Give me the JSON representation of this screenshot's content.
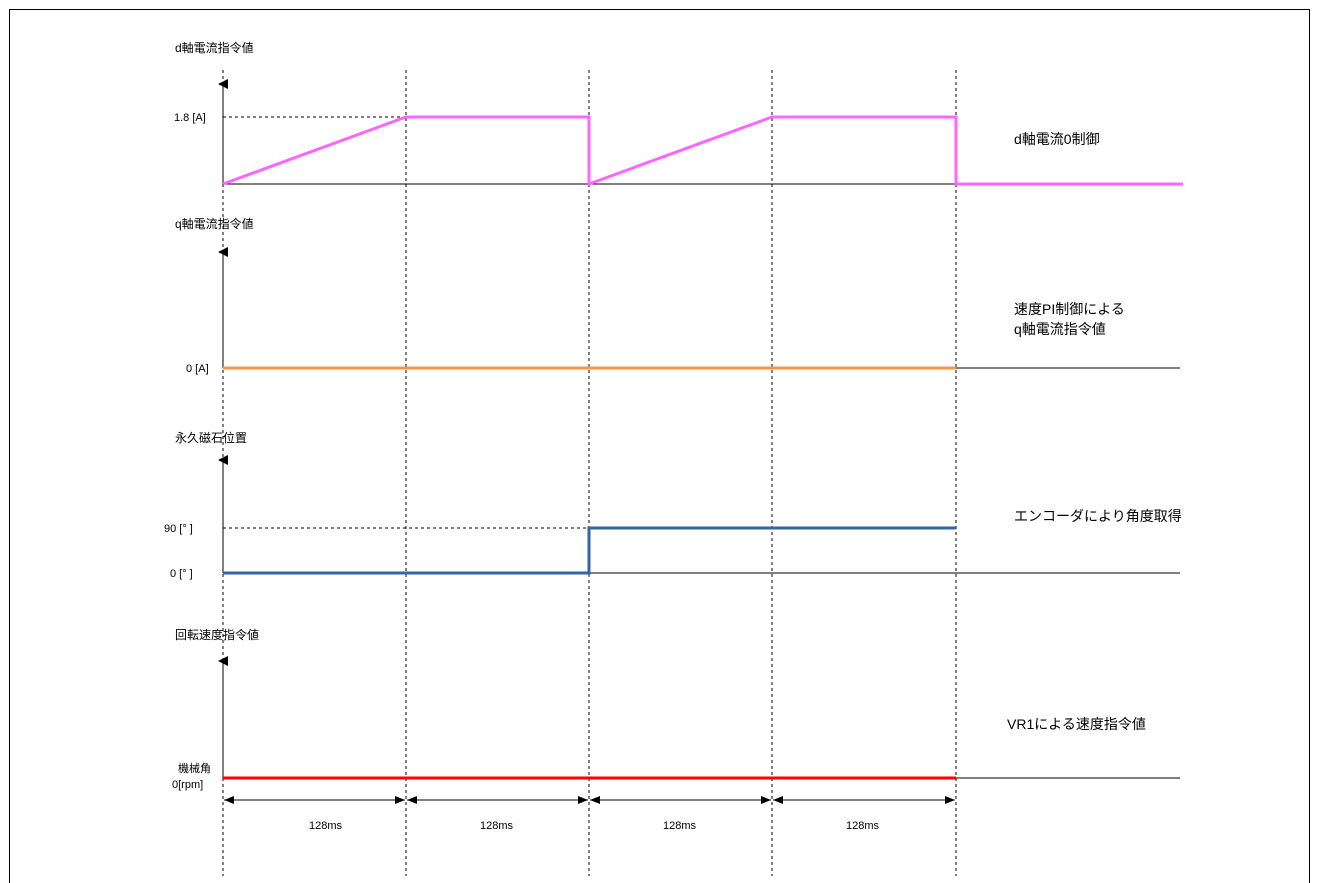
{
  "colors": {
    "d_axis_current": "#ff66ff",
    "q_axis_current": "#f79646",
    "magnet_position": "#3465a4",
    "speed_command": "#ff0000",
    "axis": "#000000",
    "guide": "#000000"
  },
  "panels": [
    {
      "title": "d軸電流指令値",
      "value_label": "1.8 [A]",
      "note": "d軸電流0制御",
      "value": 1.8,
      "unit": "A"
    },
    {
      "title": "q軸電流指令値",
      "value_label": "0 [A]",
      "note_lines": [
        "速度PI制御による",
        "q軸電流指令値"
      ],
      "value": 0,
      "unit": "A"
    },
    {
      "title": "永久磁石位置",
      "value_labels": [
        "90 [°  ]",
        "0 [°  ]"
      ],
      "note": "エンコーダにより角度取得",
      "values": [
        0,
        90
      ],
      "unit": "°"
    },
    {
      "title": "回転速度指令値",
      "value_label_lines": [
        "機械角",
        "0[rpm]"
      ],
      "note": "VR1による速度指令値",
      "value": 0,
      "unit": "rpm"
    }
  ],
  "intervals": [
    {
      "label": "128ms",
      "duration_ms": 128
    },
    {
      "label": "128ms",
      "duration_ms": 128
    },
    {
      "label": "128ms",
      "duration_ms": 128
    },
    {
      "label": "128ms",
      "duration_ms": 128
    }
  ]
}
